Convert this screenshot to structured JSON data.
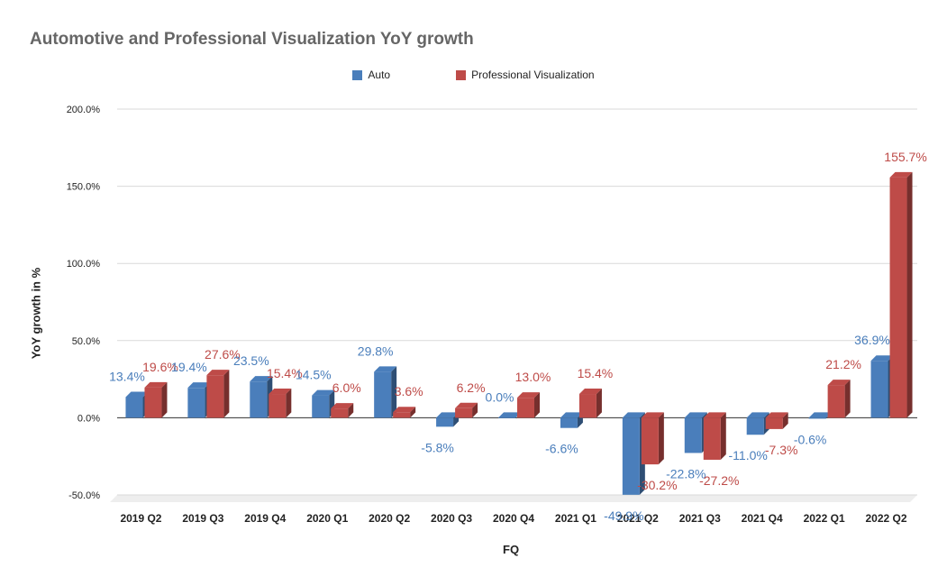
{
  "chart_data": {
    "type": "bar",
    "title": "Automotive and Professional Visualization YoY growth",
    "xlabel": "FQ",
    "ylabel": "YoY growth in %",
    "ylim": [
      -50,
      200
    ],
    "yticks": [
      "200.0%",
      "150.0%",
      "100.0%",
      "50.0%",
      "0.0%",
      "-50.0%"
    ],
    "ytick_values": [
      200,
      150,
      100,
      50,
      0,
      -50
    ],
    "categories": [
      "2019 Q2",
      "2019 Q3",
      "2019 Q4",
      "2020 Q1",
      "2020 Q2",
      "2020 Q3",
      "2020 Q4",
      "2021 Q1",
      "2021 Q2",
      "2021 Q3",
      "2021 Q4",
      "2022 Q1",
      "2022 Q2"
    ],
    "series": [
      {
        "name": "Auto",
        "color": "#4a7ebb",
        "values": [
          13.4,
          19.4,
          23.5,
          14.5,
          29.8,
          -5.8,
          0.0,
          -6.6,
          -49.9,
          -22.8,
          -11.0,
          -0.6,
          36.9
        ],
        "labels": [
          "13.4%",
          "19.4%",
          "23.5%",
          "14.5%",
          "29.8%",
          "-5.8%",
          "0.0%",
          "-6.6%",
          "-49.9%",
          "-22.8%",
          "-11.0%",
          "-0.6%",
          "36.9%"
        ]
      },
      {
        "name": "Professional Visualization",
        "color": "#be4b48",
        "values": [
          19.6,
          27.6,
          15.4,
          6.0,
          3.6,
          6.2,
          13.0,
          15.4,
          -30.2,
          -27.2,
          -7.3,
          21.2,
          155.7
        ],
        "labels": [
          "19.6%",
          "27.6%",
          "15.4%",
          "6.0%",
          "3.6%",
          "6.2%",
          "13.0%",
          "15.4%",
          "-30.2%",
          "-27.2%",
          "-7.3%",
          "21.2%",
          "155.7%"
        ]
      }
    ],
    "legend": [
      "Auto",
      "Professional Visualization"
    ],
    "legend_position": "top",
    "grid": true
  }
}
